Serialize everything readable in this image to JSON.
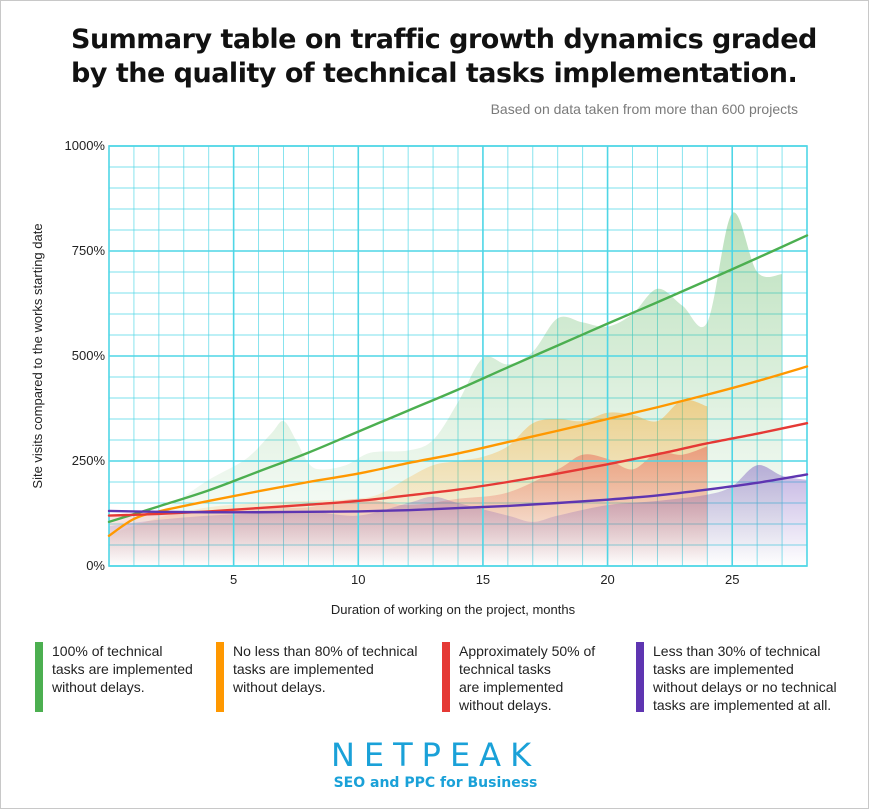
{
  "title_lines": [
    "Summary table on traffic growth dynamics graded",
    "by the quality of technical tasks implementation."
  ],
  "subtitle": "Based on data taken from more than 600 projects",
  "chart_data": {
    "type": "line",
    "xlabel": "Duration of working on the project, months",
    "ylabel": "Site visits compared to the works starting date",
    "xlim": [
      0,
      28
    ],
    "ylim": [
      0,
      1000
    ],
    "x_ticks": [
      5,
      10,
      15,
      20,
      25
    ],
    "x_tick_labels": [
      "5",
      "10",
      "15",
      "20",
      "25"
    ],
    "y_ticks": [
      0,
      250,
      500,
      750,
      1000
    ],
    "y_tick_labels": [
      "0%",
      "250%",
      "500%",
      "750%",
      "1000%"
    ],
    "grid": true,
    "series": [
      {
        "name": "100% of technical tasks are implemented without delays.",
        "color": "#4caf50",
        "trend": [
          [
            0,
            105
          ],
          [
            2,
            142
          ],
          [
            4,
            180
          ],
          [
            6,
            225
          ],
          [
            8,
            270
          ],
          [
            10,
            320
          ],
          [
            12,
            370
          ],
          [
            14,
            420
          ],
          [
            16,
            473
          ],
          [
            18,
            525
          ],
          [
            20,
            577
          ],
          [
            22,
            628
          ],
          [
            24,
            680
          ],
          [
            26,
            733
          ],
          [
            28,
            787
          ]
        ],
        "area": [
          [
            0,
            100
          ],
          [
            2,
            130
          ],
          [
            4,
            205
          ],
          [
            5.5,
            255
          ],
          [
            6.5,
            315
          ],
          [
            7,
            345
          ],
          [
            7.5,
            300
          ],
          [
            8,
            245
          ],
          [
            8.5,
            230
          ],
          [
            9.5,
            240
          ],
          [
            10.5,
            270
          ],
          [
            12,
            275
          ],
          [
            13,
            300
          ],
          [
            14,
            390
          ],
          [
            15,
            495
          ],
          [
            16,
            480
          ],
          [
            17,
            510
          ],
          [
            18,
            590
          ],
          [
            19,
            580
          ],
          [
            20,
            570
          ],
          [
            21,
            600
          ],
          [
            22,
            660
          ],
          [
            23,
            620
          ],
          [
            24,
            580
          ],
          [
            25,
            840
          ],
          [
            26,
            700
          ],
          [
            27,
            695
          ]
        ]
      },
      {
        "name": "No less than 80% of technical tasks are implemented without delays.",
        "color": "#ff9800",
        "trend": [
          [
            0,
            72
          ],
          [
            1,
            112
          ],
          [
            2,
            130
          ],
          [
            4,
            155
          ],
          [
            6,
            178
          ],
          [
            8,
            200
          ],
          [
            10,
            220
          ],
          [
            12,
            245
          ],
          [
            14,
            268
          ],
          [
            16,
            295
          ],
          [
            18,
            322
          ],
          [
            20,
            350
          ],
          [
            22,
            378
          ],
          [
            24,
            408
          ],
          [
            26,
            440
          ],
          [
            28,
            475
          ]
        ],
        "area": [
          [
            0,
            75
          ],
          [
            2,
            115
          ],
          [
            4,
            140
          ],
          [
            6,
            150
          ],
          [
            8,
            155
          ],
          [
            10,
            160
          ],
          [
            11,
            175
          ],
          [
            12,
            210
          ],
          [
            13,
            240
          ],
          [
            14,
            250
          ],
          [
            15,
            260
          ],
          [
            16,
            285
          ],
          [
            17,
            340
          ],
          [
            18,
            350
          ],
          [
            19,
            345
          ],
          [
            20,
            365
          ],
          [
            21,
            360
          ],
          [
            22,
            345
          ],
          [
            23,
            395
          ],
          [
            24,
            380
          ]
        ]
      },
      {
        "name": "Approximately 50% of technical tasks are implemented without delays.",
        "color": "#e53935",
        "trend": [
          [
            0,
            120
          ],
          [
            2,
            124
          ],
          [
            4,
            130
          ],
          [
            6,
            138
          ],
          [
            8,
            146
          ],
          [
            10,
            155
          ],
          [
            12,
            168
          ],
          [
            14,
            182
          ],
          [
            16,
            200
          ],
          [
            18,
            220
          ],
          [
            20,
            242
          ],
          [
            22,
            266
          ],
          [
            24,
            292
          ],
          [
            26,
            315
          ],
          [
            28,
            340
          ]
        ],
        "area": [
          [
            0,
            120
          ],
          [
            2,
            125
          ],
          [
            4,
            130
          ],
          [
            6,
            140
          ],
          [
            8,
            140
          ],
          [
            10,
            160
          ],
          [
            12,
            145
          ],
          [
            14,
            160
          ],
          [
            16,
            175
          ],
          [
            18,
            230
          ],
          [
            19,
            265
          ],
          [
            20,
            255
          ],
          [
            21,
            230
          ],
          [
            22,
            270
          ],
          [
            23,
            265
          ],
          [
            24,
            285
          ]
        ]
      },
      {
        "name": "Less than 30% of technical tasks are implemented without delays or no technical tasks are implemented at all.",
        "color": "#5e35b1",
        "trend": [
          [
            0,
            131
          ],
          [
            2,
            129
          ],
          [
            4,
            128
          ],
          [
            6,
            128
          ],
          [
            8,
            129
          ],
          [
            10,
            130
          ],
          [
            12,
            133
          ],
          [
            14,
            138
          ],
          [
            16,
            143
          ],
          [
            18,
            150
          ],
          [
            20,
            158
          ],
          [
            22,
            168
          ],
          [
            24,
            182
          ],
          [
            26,
            198
          ],
          [
            28,
            218
          ]
        ],
        "area": [
          [
            0,
            95
          ],
          [
            2,
            110
          ],
          [
            4,
            120
          ],
          [
            6,
            125
          ],
          [
            8,
            130
          ],
          [
            10,
            120
          ],
          [
            12,
            150
          ],
          [
            13,
            165
          ],
          [
            14,
            150
          ],
          [
            16,
            120
          ],
          [
            17,
            105
          ],
          [
            18,
            120
          ],
          [
            20,
            145
          ],
          [
            22,
            155
          ],
          [
            24,
            170
          ],
          [
            25,
            190
          ],
          [
            26,
            240
          ],
          [
            27,
            215
          ],
          [
            28,
            205
          ]
        ]
      }
    ]
  },
  "legend": [
    {
      "lines": [
        "100% of technical",
        "tasks are implemented",
        "without delays."
      ],
      "color": "#4caf50"
    },
    {
      "lines": [
        "No less than 80% of technical",
        "tasks are implemented",
        "without delays."
      ],
      "color": "#ff9800"
    },
    {
      "lines": [
        "Approximately 50% of",
        "technical tasks",
        "are implemented",
        "without delays."
      ],
      "color": "#e53935"
    },
    {
      "lines": [
        "Less than 30% of technical",
        "tasks are implemented",
        "without delays or no technical",
        "tasks are implemented at all."
      ],
      "color": "#5e35b1"
    }
  ],
  "brand": {
    "name": "NETPEAK",
    "tagline": "SEO and PPC for Business",
    "color": "#1aa1d8"
  }
}
